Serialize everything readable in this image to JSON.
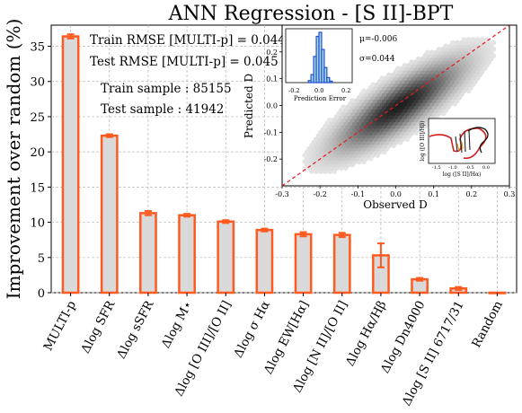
{
  "chart_data": {
    "type": "bar",
    "title": "ANN Regression - [S II]-BPT",
    "xlabel": "",
    "ylabel": "Improvement over random (%)",
    "ylim": [
      0,
      38
    ],
    "yticks": [
      0,
      5,
      10,
      15,
      20,
      25,
      30,
      35
    ],
    "grid": true,
    "categories": [
      "MULTI-p",
      "Δlog SFR",
      "Δlog sSFR",
      "Δlog M⋆",
      "Δlog [O III]/[O II]",
      "Δlog σ Hα",
      "Δlog EW[Hα]",
      "Δlog [N II]/[O II]",
      "Δlog Hα/Hβ",
      "Δlog Dn4000",
      "Δlog [S II] 6717/31",
      "Random"
    ],
    "values": [
      36.4,
      22.3,
      11.3,
      11.0,
      10.1,
      8.9,
      8.3,
      8.2,
      5.3,
      1.9,
      0.6,
      0.0
    ],
    "errors": [
      0.3,
      0.2,
      0.3,
      0.2,
      0.2,
      0.2,
      0.3,
      0.3,
      1.7,
      0.2,
      0.2,
      0.0
    ],
    "bar_fill": "#d9d9d9",
    "bar_edge": "#ff5a1f",
    "annotations": {
      "train_rmse": "Train RMSE [MULTI-p] = 0.044",
      "test_rmse": "Test RMSE [MULTI-p] = 0.045",
      "train_sample": "Train sample : 85155",
      "test_sample": "Test sample : 41942"
    },
    "inset_scatter": {
      "type": "heatmap",
      "xlabel": "Observed D",
      "ylabel": "Predicted D",
      "xlim": [
        -0.3,
        0.3
      ],
      "ylim": [
        -0.3,
        0.3
      ],
      "xticks": [
        "-0.3",
        "-0.2",
        "-0.1",
        "0.0",
        "0.1",
        "0.2",
        "0.3"
      ],
      "yticks": [
        "-0.2",
        "-0.1",
        "0.0",
        "0.1",
        "0.2"
      ],
      "one_to_one_line_color": "#e8191c"
    },
    "inset_hist": {
      "type": "bar",
      "xlabel": "Prediction Error",
      "xticks": [
        "-0.2",
        "0.0",
        "0.2"
      ],
      "mu_label": "μ=-0.006",
      "sigma_label": "σ=0.044",
      "fill": "#a6d8ea",
      "edge": "#1f4fd1",
      "x": [
        -0.07,
        -0.05,
        -0.03,
        -0.01,
        0.01,
        0.03,
        0.05,
        0.07,
        0.09
      ],
      "values": [
        0.04,
        0.16,
        0.52,
        0.92,
        1.0,
        0.66,
        0.3,
        0.1,
        0.03
      ]
    },
    "inset_bpt": {
      "xlabel": "log ([S II]/Hα)",
      "ylabel": "log ([O III]/Hβ)",
      "xticks": [
        "-1.5",
        "-1.0",
        "-0.5",
        "0.0"
      ]
    }
  }
}
